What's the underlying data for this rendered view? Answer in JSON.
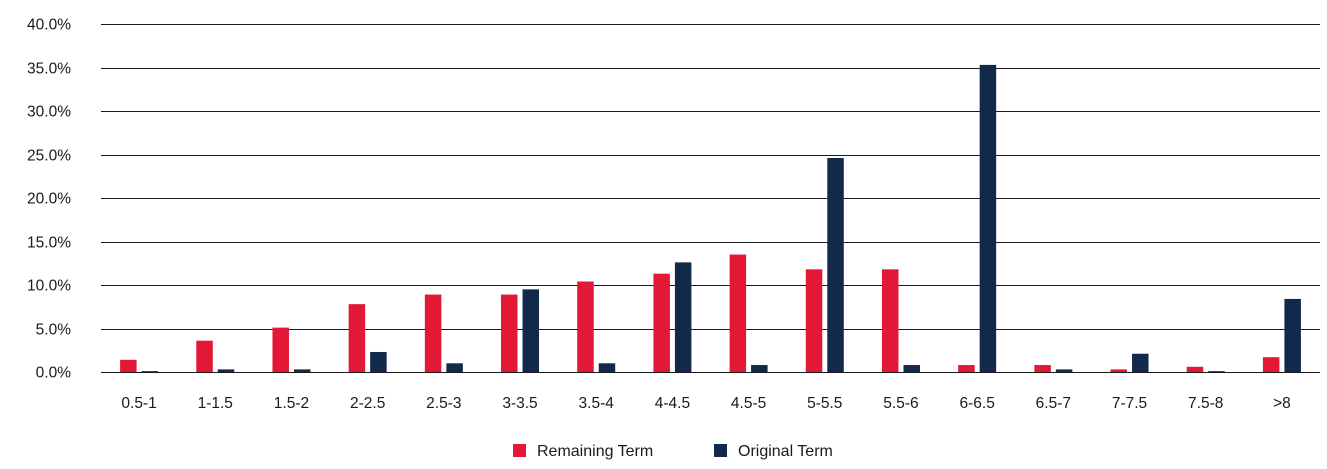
{
  "chart_data": {
    "type": "bar",
    "title": "",
    "xlabel": "",
    "ylabel": "",
    "ylim": [
      0,
      40
    ],
    "y_ticks": [
      0,
      5,
      10,
      15,
      20,
      25,
      30,
      35,
      40
    ],
    "y_tick_labels": [
      "0.0%",
      "5.0%",
      "10.0%",
      "15.0%",
      "20.0%",
      "25.0%",
      "30.0%",
      "35.0%",
      "40.0%"
    ],
    "grid": true,
    "legend_position": "bottom",
    "categories": [
      "0.5-1",
      "1-1.5",
      "1.5-2",
      "2-2.5",
      "2.5-3",
      "3-3.5",
      "3.5-4",
      "4-4.5",
      "4.5-5",
      "5-5.5",
      "5.5-6",
      "6-6.5",
      "6.5-7",
      "7-7.5",
      "7.5-8",
      ">8"
    ],
    "series": [
      {
        "name": "Remaining Term",
        "color": "#e31837",
        "values": [
          1.4,
          3.6,
          5.1,
          7.8,
          8.9,
          8.9,
          10.4,
          11.3,
          13.5,
          11.8,
          11.8,
          0.8,
          0.8,
          0.3,
          0.6,
          1.7
        ]
      },
      {
        "name": "Original Term",
        "color": "#13294b",
        "values": [
          0.1,
          0.3,
          0.3,
          2.3,
          1.0,
          9.5,
          1.0,
          12.6,
          0.8,
          24.6,
          0.8,
          35.3,
          0.3,
          2.1,
          0.1,
          8.4
        ]
      }
    ]
  }
}
